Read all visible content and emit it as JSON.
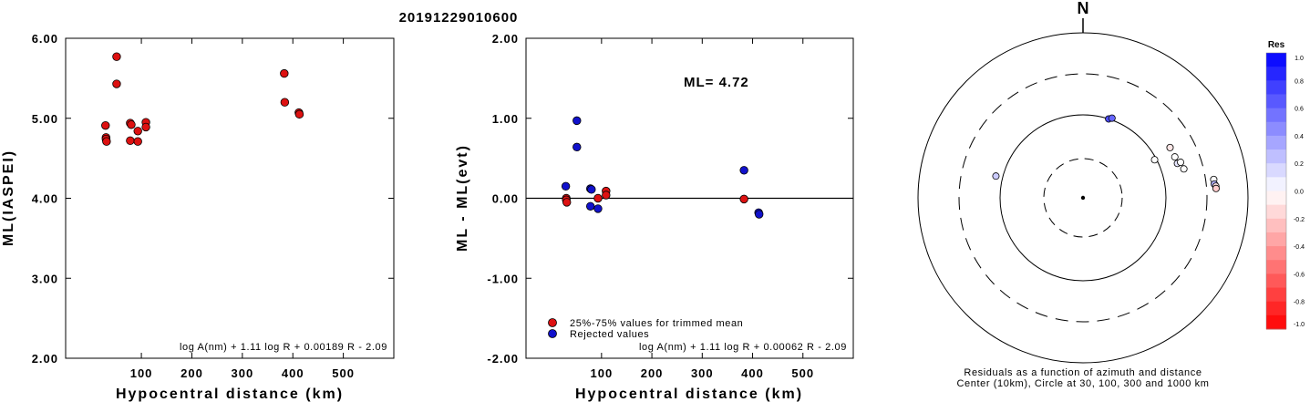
{
  "title": "20191229010600",
  "chart_data": [
    {
      "type": "scatter",
      "ylabel": "ML(IASPEI)",
      "xlabel": "Hypocentral distance (km)",
      "xlim": [
        -50,
        600
      ],
      "ylim": [
        2.0,
        6.0
      ],
      "x_ticks": [
        "100",
        "200",
        "300",
        "400",
        "500"
      ],
      "y_ticks": [
        "2.00",
        "3.00",
        "4.00",
        "5.00",
        "6.00"
      ],
      "formula": "log A(nm) + 1.11 log R + 0.00189 R - 2.09",
      "series": [
        {
          "color": "#dd1111",
          "points": [
            [
              29,
              4.91
            ],
            [
              30,
              4.76
            ],
            [
              30,
              4.74
            ],
            [
              31,
              4.71
            ],
            [
              51,
              5.77
            ],
            [
              51,
              5.43
            ],
            [
              78,
              4.94
            ],
            [
              78,
              4.72
            ],
            [
              80,
              4.92
            ],
            [
              93,
              4.84
            ],
            [
              93,
              4.71
            ],
            [
              109,
              4.95
            ],
            [
              109,
              4.89
            ],
            [
              383,
              5.56
            ],
            [
              384,
              5.2
            ],
            [
              412,
              5.07
            ],
            [
              413,
              5.05
            ]
          ]
        }
      ]
    },
    {
      "type": "scatter",
      "ylabel": "ML - ML(evt)",
      "xlabel": "Hypocentral distance (km)",
      "xlim": [
        -50,
        600
      ],
      "ylim": [
        -2.0,
        2.0
      ],
      "x_ticks": [
        "100",
        "200",
        "300",
        "400",
        "500"
      ],
      "y_ticks": [
        "-2.00",
        "-1.00",
        "0.00",
        "1.00",
        "2.00"
      ],
      "annotation": "ML= 4.72",
      "zero_line": true,
      "legend": [
        {
          "label": "25%-75% values for trimmed mean",
          "color": "#dd1111"
        },
        {
          "label": "Rejected values",
          "color": "#1111cc"
        }
      ],
      "formula": "log A(nm) + 1.11 log R + 0.00062 R - 2.09",
      "series": [
        {
          "color": "#dd1111",
          "points": [
            [
              30,
              0.0
            ],
            [
              30,
              -0.02
            ],
            [
              31,
              -0.05
            ],
            [
              93,
              0.0
            ],
            [
              109,
              0.09
            ],
            [
              109,
              0.04
            ],
            [
              383,
              -0.01
            ]
          ]
        },
        {
          "color": "#1111cc",
          "points": [
            [
              29,
              0.15
            ],
            [
              51,
              0.97
            ],
            [
              51,
              0.64
            ],
            [
              78,
              0.12
            ],
            [
              80,
              0.11
            ],
            [
              78,
              -0.1
            ],
            [
              93,
              -0.13
            ],
            [
              383,
              0.35
            ],
            [
              412,
              -0.18
            ],
            [
              413,
              -0.2
            ]
          ]
        }
      ]
    }
  ],
  "polar": {
    "north_label": "N",
    "caption_line1": "Residuals as a function of azimuth and distance",
    "caption_line2": "Center (10km), Circle at 30, 100, 300 and 1000 km",
    "points": [
      {
        "az": 284,
        "dist": 120,
        "res": 0.2
      },
      {
        "az": 18,
        "dist": 100,
        "res": 0.7
      },
      {
        "az": 20,
        "dist": 105,
        "res": 0.6
      },
      {
        "az": 62,
        "dist": 95,
        "res": 0.0
      },
      {
        "az": 60,
        "dist": 160,
        "res": -0.1
      },
      {
        "az": 66,
        "dist": 160,
        "res": 0.0
      },
      {
        "az": 70,
        "dist": 160,
        "res": 0.1
      },
      {
        "az": 70,
        "dist": 175,
        "res": 0.0
      },
      {
        "az": 74,
        "dist": 180,
        "res": 0.0
      },
      {
        "az": 82,
        "dist": 380,
        "res": 0.0
      },
      {
        "az": 84,
        "dist": 380,
        "res": 0.3
      },
      {
        "az": 85,
        "dist": 395,
        "res": -0.1
      },
      {
        "az": 86,
        "dist": 395,
        "res": -0.2
      }
    ]
  },
  "colorbar": {
    "title": "Res",
    "labels": [
      "1.0",
      "0.8",
      "0.6",
      "0.4",
      "0.2",
      "0.0",
      "-0.2",
      "-0.4",
      "-0.6",
      "-0.8",
      "-1.0"
    ],
    "max_color": "#0000ff",
    "mid_color": "#ffffff",
    "min_color": "#ff0000"
  }
}
